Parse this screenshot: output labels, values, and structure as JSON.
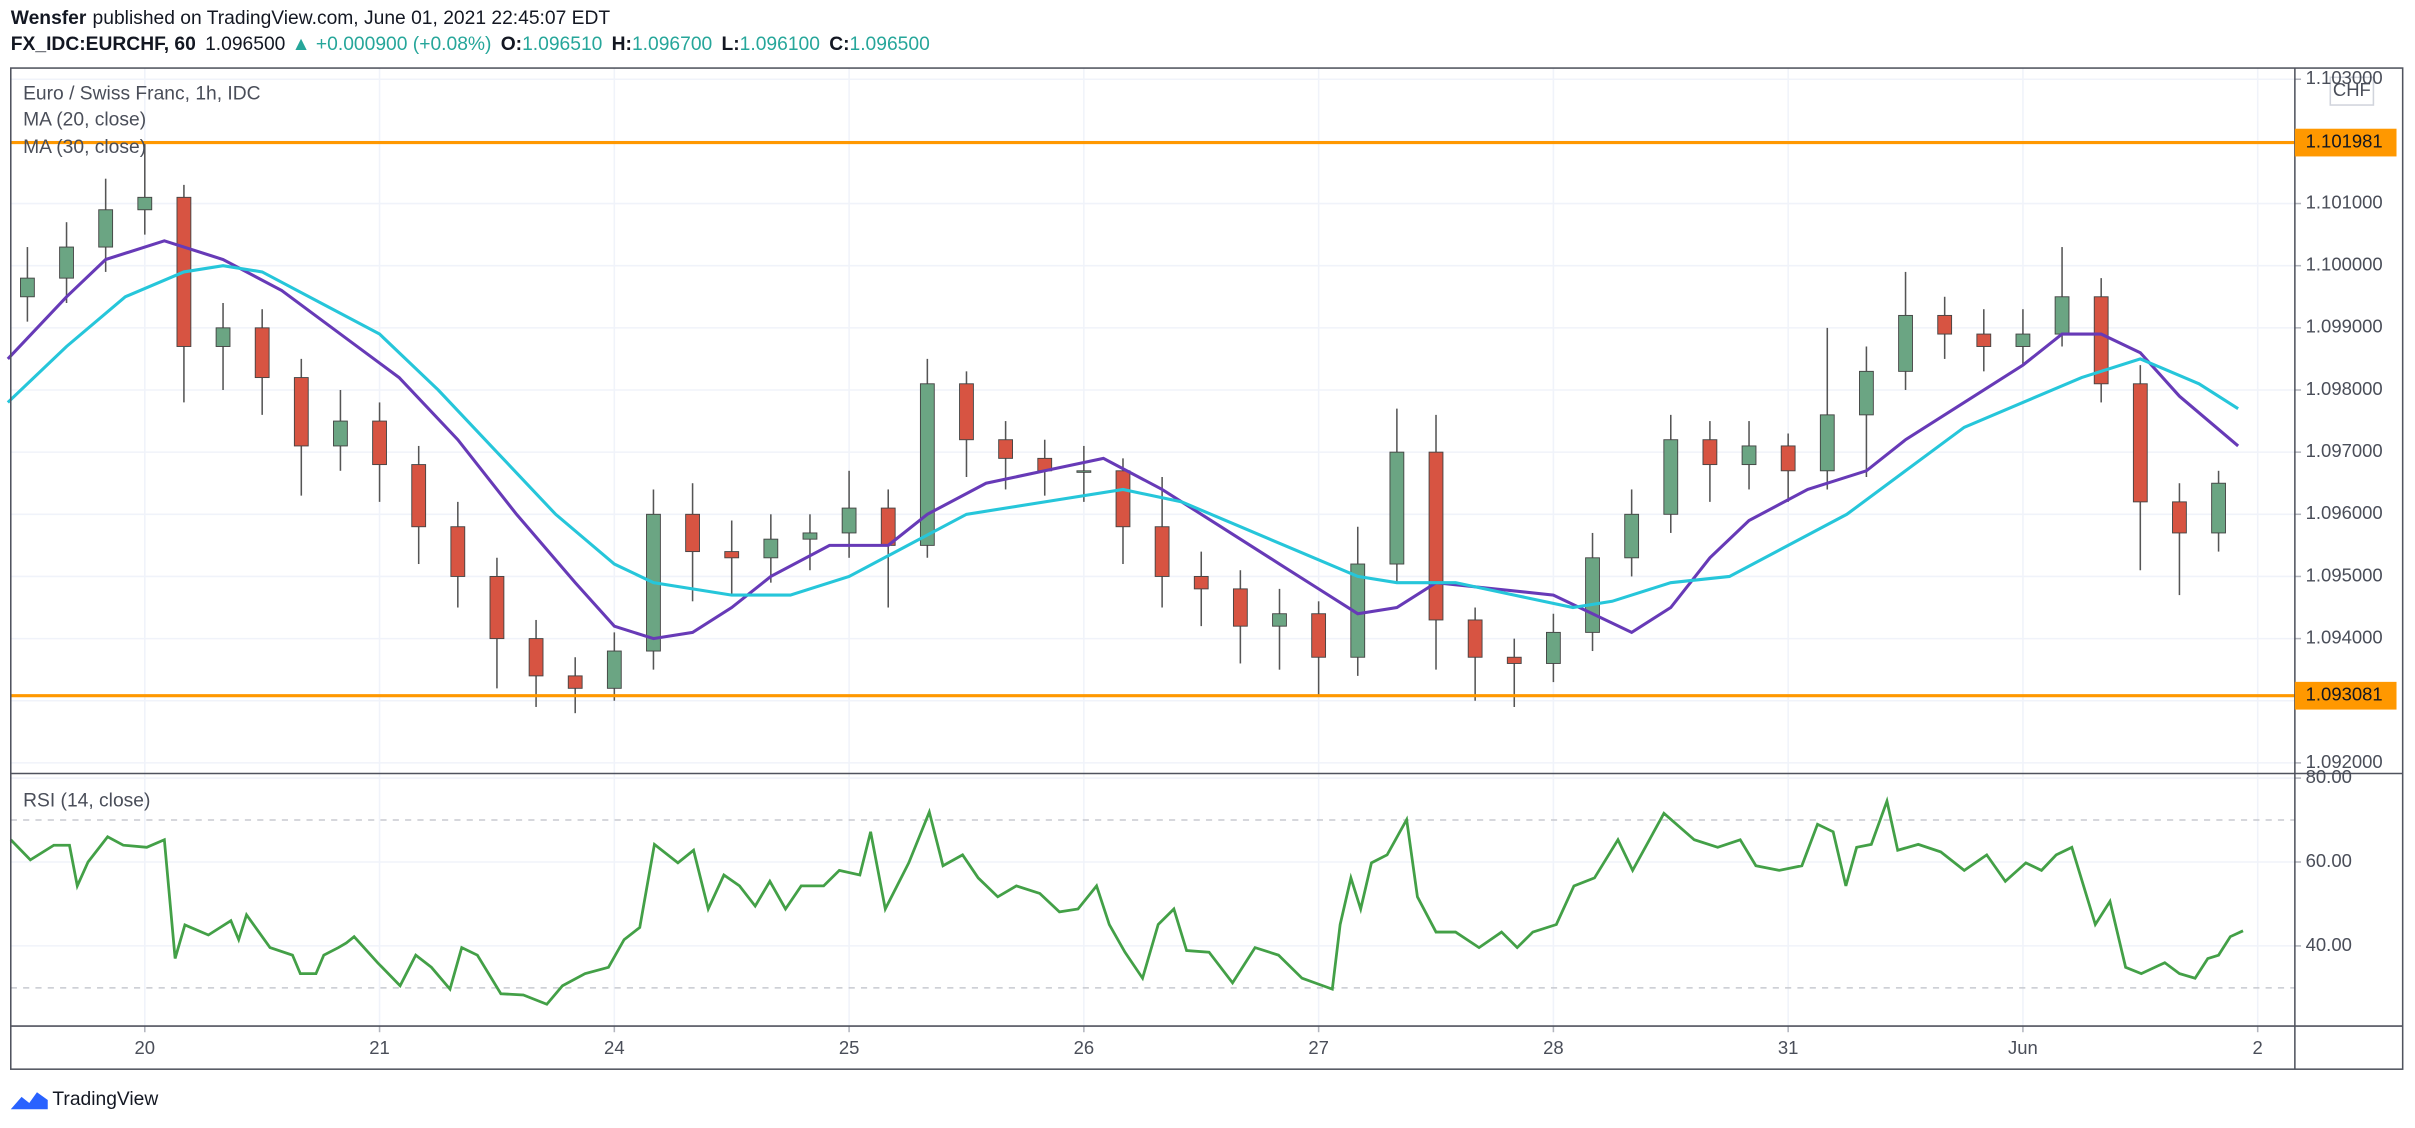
{
  "header": {
    "author": "Wensfer",
    "published": "published on TradingView.com, June 01, 2021 22:45:07 EDT",
    "symbol": "FX_IDC:EURCHF, 60",
    "last": "1.096500",
    "change": "▲ +0.000900 (+0.08%)",
    "ohlc": [
      {
        "label": "O:",
        "value": "1.096510"
      },
      {
        "label": "H:",
        "value": "1.096700"
      },
      {
        "label": "L:",
        "value": "1.096100"
      },
      {
        "label": "C:",
        "value": "1.096500"
      }
    ]
  },
  "footer": {
    "brand": "TradingView"
  },
  "chart_data": [
    {
      "type": "candlestick",
      "title": "Euro / Swiss Franc, 1h, IDC",
      "currency": "CHF",
      "up_color": "#6ba583",
      "down_color": "#d75442",
      "x": [
        -12,
        -8,
        -4,
        0,
        4,
        8,
        12,
        16,
        20,
        24,
        28,
        32,
        36,
        40,
        44,
        48,
        52,
        56,
        60,
        64,
        68,
        72,
        76,
        80,
        84,
        88,
        92,
        96,
        100,
        104,
        108,
        112,
        116,
        120,
        124,
        128,
        132,
        136,
        140,
        144,
        148,
        152,
        156,
        160,
        164,
        168,
        172,
        176,
        180,
        184,
        188,
        192,
        196,
        200,
        204,
        208,
        212
      ],
      "open": [
        1.0995,
        1.0998,
        1.1003,
        1.1009,
        1.1011,
        1.0987,
        1.099,
        1.0982,
        1.0971,
        1.0975,
        1.0968,
        1.0958,
        1.095,
        1.094,
        1.0934,
        1.0932,
        1.0938,
        1.096,
        1.0954,
        1.0953,
        1.0956,
        1.0957,
        1.0961,
        1.0955,
        1.0981,
        1.0972,
        1.0969,
        1.0967,
        1.0967,
        1.0958,
        1.095,
        1.0948,
        1.0942,
        1.0944,
        1.0937,
        1.0952,
        1.097,
        1.0943,
        1.0937,
        1.0936,
        1.0941,
        1.0953,
        1.096,
        1.0972,
        1.0968,
        1.0971,
        1.0967,
        1.0976,
        1.0983,
        1.0992,
        1.0989,
        1.0987,
        1.0989,
        1.0995,
        1.0981,
        1.0962,
        1.0957
      ],
      "high": [
        1.1003,
        1.1007,
        1.1014,
        1.102,
        1.1013,
        1.0994,
        1.0993,
        1.0985,
        1.098,
        1.0978,
        1.0971,
        1.0962,
        1.0953,
        1.0943,
        1.0937,
        1.0941,
        1.0964,
        1.0965,
        1.0959,
        1.096,
        1.096,
        1.0967,
        1.0964,
        1.0985,
        1.0983,
        1.0975,
        1.0972,
        1.0971,
        1.0969,
        1.0966,
        1.0954,
        1.0951,
        1.0948,
        1.0946,
        1.0958,
        1.0977,
        1.0976,
        1.0945,
        1.094,
        1.0944,
        1.0957,
        1.0964,
        1.0976,
        1.0975,
        1.0975,
        1.0973,
        1.099,
        1.0987,
        1.0999,
        1.0995,
        1.0993,
        1.0993,
        1.1003,
        1.0998,
        1.0984,
        1.0965,
        1.0967
      ],
      "low": [
        1.0991,
        1.0994,
        1.0999,
        1.1005,
        1.0978,
        1.098,
        1.0976,
        1.0963,
        1.0967,
        1.0962,
        1.0952,
        1.0945,
        1.0932,
        1.0929,
        1.0928,
        1.093,
        1.0935,
        1.0946,
        1.0947,
        1.0949,
        1.0951,
        1.0953,
        1.0945,
        1.0953,
        1.0966,
        1.0964,
        1.0963,
        1.0962,
        1.0952,
        1.0945,
        1.0942,
        1.0936,
        1.0935,
        1.0931,
        1.0934,
        1.0949,
        1.0935,
        1.093,
        1.0929,
        1.0933,
        1.0938,
        1.095,
        1.0957,
        1.0962,
        1.0964,
        1.0962,
        1.0964,
        1.0966,
        1.098,
        1.0985,
        1.0983,
        1.0984,
        1.0987,
        1.0978,
        1.0951,
        1.0947,
        1.0954
      ],
      "close": [
        1.0998,
        1.1003,
        1.1009,
        1.1011,
        1.0987,
        1.099,
        1.0982,
        1.0971,
        1.0975,
        1.0968,
        1.0958,
        1.095,
        1.094,
        1.0934,
        1.0932,
        1.0938,
        1.096,
        1.0954,
        1.0953,
        1.0956,
        1.0957,
        1.0961,
        1.0955,
        1.0981,
        1.0972,
        1.0969,
        1.0967,
        1.0967,
        1.0958,
        1.095,
        1.0948,
        1.0942,
        1.0944,
        1.0937,
        1.0952,
        1.097,
        1.0943,
        1.0937,
        1.0936,
        1.0941,
        1.0953,
        1.096,
        1.0972,
        1.0968,
        1.0971,
        1.0967,
        1.0976,
        1.0983,
        1.0992,
        1.0989,
        1.0987,
        1.0989,
        1.0995,
        1.0981,
        1.0962,
        1.0957,
        1.0965
      ],
      "series": [
        {
          "name": "MA (20, close)",
          "color": "#673ab7",
          "x": [
            -14,
            -8,
            -4,
            2,
            8,
            14,
            20,
            26,
            32,
            38,
            44,
            48,
            52,
            56,
            60,
            64,
            70,
            76,
            80,
            86,
            92,
            98,
            104,
            110,
            116,
            120,
            124,
            128,
            132,
            138,
            144,
            148,
            152,
            156,
            160,
            164,
            170,
            176,
            180,
            186,
            192,
            196,
            200,
            204,
            208,
            214
          ],
          "values": [
            1.0985,
            1.0995,
            1.1001,
            1.1004,
            1.1001,
            1.0996,
            1.0989,
            1.0982,
            1.0972,
            1.096,
            1.0949,
            1.0942,
            1.094,
            1.0941,
            1.0945,
            1.095,
            1.0955,
            1.0955,
            1.096,
            1.0965,
            1.0967,
            1.0969,
            1.0964,
            1.0958,
            1.0952,
            1.0948,
            1.0944,
            1.0945,
            1.0949,
            1.0948,
            1.0947,
            1.0944,
            1.0941,
            1.0945,
            1.0953,
            1.0959,
            1.0964,
            1.0967,
            1.0972,
            1.0978,
            1.0984,
            1.0989,
            1.0989,
            1.0986,
            1.0979,
            1.0971
          ]
        },
        {
          "name": "MA (30, close)",
          "color": "#26c6da",
          "x": [
            -14,
            -8,
            -2,
            4,
            8,
            12,
            18,
            24,
            30,
            36,
            42,
            48,
            52,
            60,
            66,
            72,
            78,
            84,
            92,
            100,
            106,
            112,
            118,
            124,
            128,
            134,
            140,
            146,
            150,
            156,
            162,
            168,
            174,
            180,
            186,
            192,
            198,
            204,
            210,
            214
          ],
          "values": [
            1.0978,
            1.0987,
            1.0995,
            1.0999,
            1.1,
            1.0999,
            1.0994,
            1.0989,
            1.098,
            1.097,
            1.096,
            1.0952,
            1.0949,
            1.0947,
            1.0947,
            1.095,
            1.0955,
            1.096,
            1.0962,
            1.0964,
            1.0962,
            1.0958,
            1.0954,
            1.095,
            1.0949,
            1.0949,
            1.0947,
            1.0945,
            1.0946,
            1.0949,
            1.095,
            1.0955,
            1.096,
            1.0967,
            1.0974,
            1.0978,
            1.0982,
            1.0985,
            1.0981,
            1.0977
          ]
        }
      ],
      "levels": [
        {
          "value": 1.101981,
          "color": "#ff9800"
        },
        {
          "value": 1.093081,
          "color": "#ff9800"
        }
      ],
      "xlim": [
        -13.7,
        219.8
      ],
      "ylim": [
        1.09183,
        1.10318
      ],
      "yticks": [
        {
          "value": 1.092,
          "label": "1.092000"
        },
        {
          "value": 1.093,
          "label": "1.093000"
        },
        {
          "value": 1.094,
          "label": "1.094000"
        },
        {
          "value": 1.095,
          "label": "1.095000"
        },
        {
          "value": 1.096,
          "label": "1.096000"
        },
        {
          "value": 1.097,
          "label": "1.097000"
        },
        {
          "value": 1.098,
          "label": "1.098000"
        },
        {
          "value": 1.099,
          "label": "1.099000"
        },
        {
          "value": 1.1,
          "label": "1.100000"
        },
        {
          "value": 1.101,
          "label": "1.101000"
        },
        {
          "value": 1.102,
          "label": "1.102000"
        },
        {
          "value": 1.103,
          "label": "1.103000"
        }
      ],
      "grid": true
    },
    {
      "type": "line",
      "title": "RSI (14, close)",
      "color": "#43a047",
      "x": [
        -13.7,
        -11.7,
        -9.3,
        -7.7,
        -6.9,
        -5.8,
        -3.8,
        -2.2,
        0.2,
        2,
        3.1,
        4.1,
        6.5,
        8.8,
        9.6,
        10.4,
        12.8,
        15.1,
        15.9,
        17.5,
        18.3,
        19.8,
        20.6,
        21.4,
        23.8,
        26.1,
        27.7,
        29.3,
        31.2,
        32.4,
        34,
        36.4,
        38.7,
        41.1,
        42.7,
        45,
        47.4,
        49,
        50.6,
        52.1,
        54.5,
        56.1,
        57.6,
        59.2,
        60.8,
        62.4,
        63.9,
        65.5,
        67.1,
        69.4,
        71,
        73.1,
        74.2,
        75.7,
        78.1,
        80.2,
        81.6,
        83.6,
        85.2,
        87.2,
        89.1,
        91.5,
        93.5,
        95.4,
        97.3,
        98.6,
        100.2,
        102,
        103.6,
        105.2,
        106.5,
        108.8,
        111.2,
        113.5,
        115.9,
        118.3,
        121.4,
        122.2,
        123.3,
        124.3,
        125.4,
        127,
        129,
        130.1,
        132,
        134,
        136.4,
        138.7,
        140.3,
        141.9,
        144.3,
        146.1,
        148.2,
        150.6,
        152.1,
        155.3,
        158.4,
        160.8,
        163.1,
        164.7,
        167.1,
        169.4,
        171,
        172.6,
        173.9,
        175,
        176.5,
        178.1,
        179.2,
        181.3,
        183.6,
        186,
        188.3,
        190.2,
        192.3,
        193.9,
        195.4,
        197,
        199.4,
        200.9,
        202.5,
        204.1,
        206.5,
        208,
        209.6,
        210.9,
        212,
        213.2,
        214.5
      ],
      "values": [
        65.3,
        60.5,
        64,
        64,
        54.3,
        60,
        66,
        64,
        63.5,
        65.3,
        37,
        45,
        42.6,
        46,
        41.5,
        47.4,
        39.6,
        37.8,
        33.4,
        33.4,
        37.8,
        39.6,
        40.7,
        42.2,
        36,
        30.5,
        37.8,
        34.9,
        29.7,
        39.6,
        37.8,
        28.6,
        28.3,
        26.1,
        30.5,
        33.4,
        34.9,
        41.5,
        44.4,
        64.2,
        59.8,
        62.8,
        48.8,
        56.9,
        54.3,
        49.5,
        55.4,
        48.8,
        54.3,
        54.3,
        58,
        56.9,
        67.2,
        48.8,
        59.8,
        71.9,
        59.1,
        61.7,
        56.2,
        51.7,
        54.3,
        52.5,
        48.1,
        48.8,
        54.3,
        45.1,
        38.5,
        32.3,
        45.1,
        48.8,
        38.9,
        38.5,
        31.2,
        39.6,
        37.8,
        32.3,
        29.7,
        45.1,
        56.2,
        48.8,
        59.8,
        61.7,
        70.1,
        51.7,
        43.3,
        43.3,
        39.6,
        43.3,
        39.6,
        43.3,
        45.1,
        54.3,
        56.2,
        65.3,
        58,
        71.6,
        65.3,
        63.5,
        65.3,
        59.1,
        58,
        59.1,
        69,
        67.2,
        54.3,
        63.5,
        64.2,
        74.5,
        62.8,
        64.2,
        62.4,
        58,
        61.7,
        55.4,
        59.8,
        58,
        61.7,
        63.5,
        45.1,
        50.6,
        34.9,
        33.4,
        36,
        33.4,
        32.3,
        37,
        37.8,
        42.2,
        43.6
      ],
      "bands": [
        70,
        30
      ],
      "xlim": [
        -13.7,
        219.8
      ],
      "xticks": [
        {
          "value": 0,
          "label": "20"
        },
        {
          "value": 24,
          "label": "21"
        },
        {
          "value": 48,
          "label": "24"
        },
        {
          "value": 72,
          "label": "25"
        },
        {
          "value": 96,
          "label": "26"
        },
        {
          "value": 120,
          "label": "27"
        },
        {
          "value": 144,
          "label": "28"
        },
        {
          "value": 168,
          "label": "31"
        },
        {
          "value": 192,
          "label": "Jun"
        },
        {
          "value": 216,
          "label": "2"
        }
      ],
      "ylim": [
        20.9,
        81.1
      ],
      "yticks": [
        {
          "value": 40,
          "label": "40.00"
        },
        {
          "value": 60,
          "label": "60.00"
        },
        {
          "value": 80,
          "label": "80.00"
        }
      ],
      "grid": true
    }
  ]
}
